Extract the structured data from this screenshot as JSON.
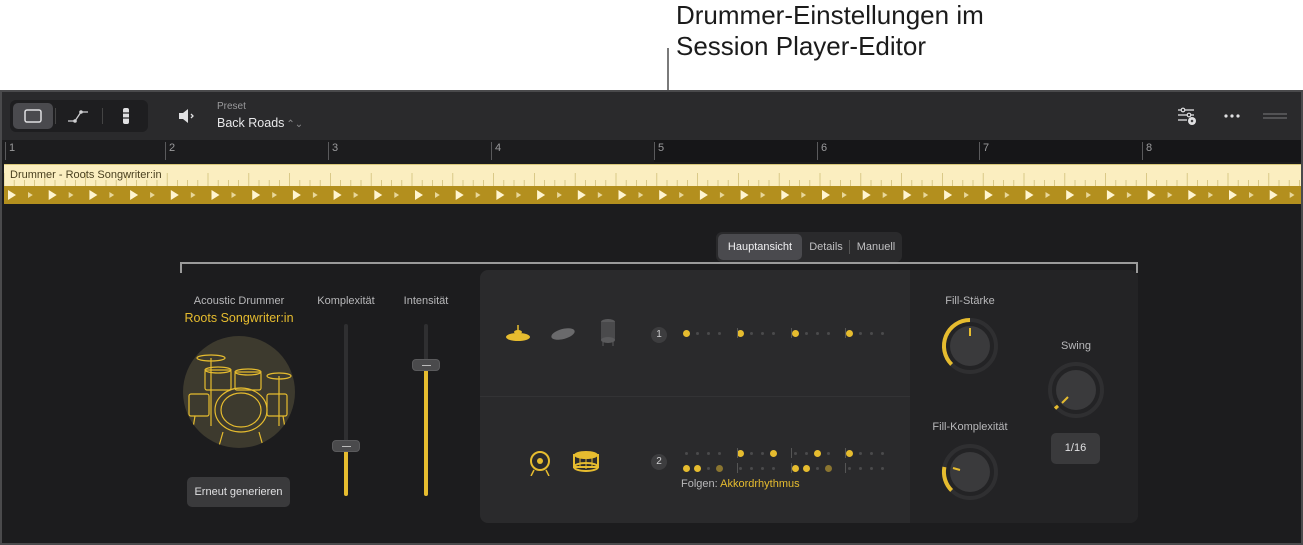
{
  "callout": {
    "line1": "Drummer-Einstellungen im",
    "line2": "Session Player-Editor"
  },
  "toolbar": {
    "view_buttons": [
      "region-view-icon",
      "automation-icon",
      "drum-kit-icon"
    ],
    "preset_label": "Preset",
    "preset_value": "Back Roads",
    "preset_chevron": "⌃⌄"
  },
  "ruler": {
    "bars": [
      "1",
      "2",
      "3",
      "4",
      "5",
      "6",
      "7",
      "8"
    ]
  },
  "region": {
    "title": "Drummer - Roots Songwriter:in"
  },
  "tabs": {
    "main": "Hauptansicht",
    "details": "Details",
    "manual": "Manuell"
  },
  "drummer": {
    "name": "Acoustic Drummer",
    "style": "Roots Songwriter:in",
    "regenerate": "Erneut generieren"
  },
  "sliders": {
    "complexity": {
      "label": "Komplexität",
      "value": 0.29
    },
    "intensity": {
      "label": "Intensität",
      "value": 0.76
    }
  },
  "pattern": {
    "row1": {
      "number": "1",
      "instruments": [
        "cymbal-icon",
        "shaker-icon",
        "cajon-icon"
      ]
    },
    "row2": {
      "number": "2",
      "instruments": [
        "kick-drum-icon",
        "snare-drum-icon"
      ]
    },
    "follow_label": "Folgen:",
    "follow_value": "Akkordrhythmus"
  },
  "knobs": {
    "fill_strength": {
      "label": "Fill-Stärke"
    },
    "fill_complexity": {
      "label": "Fill-Komplexität"
    },
    "swing": {
      "label": "Swing",
      "value": "1/16"
    }
  },
  "colors": {
    "accent": "#e6bc2f",
    "region_light": "#fbeec0",
    "region_dark": "#b38f1e",
    "background": "#1c1c1e"
  }
}
